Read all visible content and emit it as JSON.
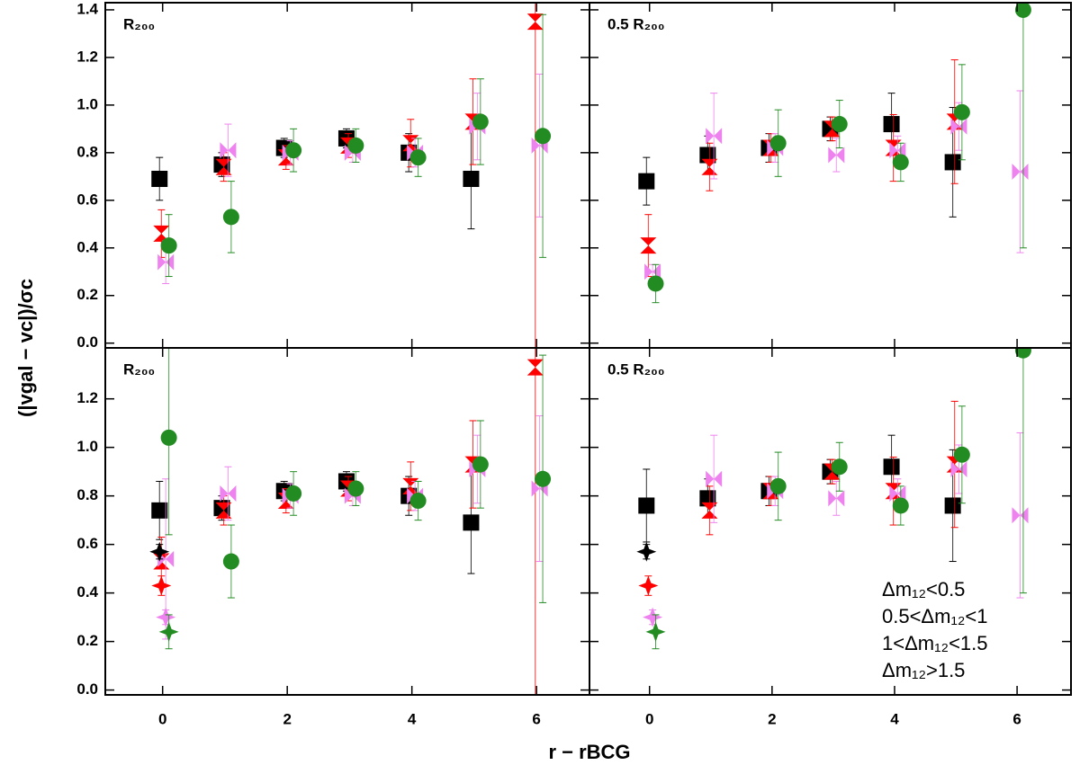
{
  "xlabel": "r − rBCG",
  "ylabel": "(|vgal − vc|)/σc",
  "chart_data": [
    {
      "type": "scatter",
      "label": "R₂₀₀",
      "xlim": [
        -0.92,
        6.85
      ],
      "ylim": [
        -0.02,
        1.43
      ],
      "xticks": [
        0,
        2,
        4,
        6
      ],
      "yticks": [
        {
          "value": 0,
          "label": "0.0"
        },
        {
          "value": 0.2,
          "label": "0.2"
        },
        {
          "value": 0.4,
          "label": "0.4"
        },
        {
          "value": 0.6,
          "label": "0.6"
        },
        {
          "value": 0.8,
          "label": "0.8"
        },
        {
          "value": 1.0,
          "label": "1.0"
        },
        {
          "value": 1.2,
          "label": "1.2"
        },
        {
          "value": 1.4,
          "label": "1.4"
        }
      ],
      "series": [
        {
          "color": "#000000",
          "marker": "square",
          "x": [
            -0.05,
            0.95,
            1.95,
            2.95,
            3.95,
            4.95
          ],
          "values": [
            0.69,
            0.75,
            0.82,
            0.86,
            0.8,
            0.69
          ],
          "errors": [
            0.09,
            0.05,
            0.04,
            0.04,
            0.08,
            0.21
          ]
        },
        {
          "color": "#ff0000",
          "marker": "hourglass",
          "x": [
            -0.02,
            0.98,
            1.98,
            2.98,
            3.98,
            4.98,
            5.98
          ],
          "values": [
            0.46,
            0.74,
            0.78,
            0.83,
            0.84,
            0.93,
            1.35
          ],
          "errors": [
            0.1,
            0.06,
            0.05,
            0.05,
            0.1,
            0.18,
            1.4
          ]
        },
        {
          "color": "#ee82ee",
          "marker": "bowtie",
          "x": [
            0.05,
            1.05,
            2.05,
            3.05,
            4.05,
            5.05,
            6.05
          ],
          "values": [
            0.34,
            0.81,
            0.8,
            0.8,
            0.8,
            0.91,
            0.83
          ],
          "errors": [
            0.09,
            0.11,
            0.05,
            0.04,
            0.06,
            0.14,
            0.3
          ]
        },
        {
          "color": "#228b22",
          "marker": "circle",
          "x": [
            0.1,
            1.1,
            2.1,
            3.1,
            4.1,
            5.1,
            6.1
          ],
          "values": [
            0.41,
            0.53,
            0.81,
            0.83,
            0.78,
            0.93,
            0.87
          ],
          "errors": [
            0.13,
            0.15,
            0.09,
            0.07,
            0.08,
            0.18,
            0.51
          ]
        }
      ]
    },
    {
      "type": "scatter",
      "label": "0.5 R₂₀₀",
      "xlim": [
        -0.98,
        6.88
      ],
      "ylim": [
        -0.02,
        1.43
      ],
      "xticks": [
        0,
        2,
        4,
        6
      ],
      "yticks": [
        0,
        0.2,
        0.4,
        0.6,
        0.8,
        1.0,
        1.2,
        1.4
      ],
      "series": [
        {
          "color": "#000000",
          "marker": "square",
          "x": [
            -0.05,
            0.95,
            1.95,
            2.95,
            3.95,
            4.95
          ],
          "values": [
            0.68,
            0.79,
            0.82,
            0.9,
            0.92,
            0.76
          ],
          "errors": [
            0.1,
            0.08,
            0.06,
            0.05,
            0.13,
            0.23
          ]
        },
        {
          "color": "#ff0000",
          "marker": "hourglass",
          "x": [
            -0.02,
            0.98,
            1.98,
            2.98,
            3.98,
            4.98
          ],
          "values": [
            0.41,
            0.74,
            0.82,
            0.9,
            0.82,
            0.93
          ],
          "errors": [
            0.13,
            0.1,
            0.06,
            0.05,
            0.14,
            0.26
          ]
        },
        {
          "color": "#ee82ee",
          "marker": "bowtie",
          "x": [
            0.05,
            1.05,
            2.05,
            3.05,
            4.05,
            5.05,
            6.05
          ],
          "values": [
            0.3,
            0.87,
            0.82,
            0.79,
            0.81,
            0.91,
            0.72
          ],
          "errors": [
            0.03,
            0.18,
            0.06,
            0.07,
            0.06,
            0.1,
            0.34
          ]
        },
        {
          "color": "#228b22",
          "marker": "circle",
          "x": [
            0.1,
            2.1,
            3.1,
            4.1,
            5.1,
            6.1
          ],
          "values": [
            0.25,
            0.84,
            0.92,
            0.76,
            0.97,
            1.4
          ],
          "errors": [
            0.08,
            0.14,
            0.1,
            0.08,
            0.2,
            1.0
          ]
        }
      ]
    },
    {
      "type": "scatter",
      "label": "R₂₀₀",
      "xlim": [
        -0.92,
        6.85
      ],
      "ylim": [
        -0.02,
        1.41
      ],
      "xticks": [
        0,
        2,
        4,
        6
      ],
      "yticks": [
        {
          "value": 0,
          "label": "0.0"
        },
        {
          "value": 0.2,
          "label": "0.2"
        },
        {
          "value": 0.4,
          "label": "0.4"
        },
        {
          "value": 0.6,
          "label": "0.6"
        },
        {
          "value": 0.8,
          "label": "0.8"
        },
        {
          "value": 1.0,
          "label": "1.0"
        },
        {
          "value": 1.2,
          "label": "1.2"
        }
      ],
      "series": [
        {
          "color": "#000000",
          "marker": "square",
          "x": [
            -0.05,
            0.95,
            1.95,
            2.95,
            3.95,
            4.95
          ],
          "values": [
            0.74,
            0.75,
            0.82,
            0.86,
            0.8,
            0.69
          ],
          "errors": [
            0.12,
            0.05,
            0.04,
            0.04,
            0.08,
            0.21
          ]
        },
        {
          "color": "#ff0000",
          "marker": "hourglass",
          "x": [
            -0.02,
            0.98,
            1.98,
            2.98,
            3.98,
            4.98,
            5.98
          ],
          "values": [
            0.53,
            0.74,
            0.78,
            0.83,
            0.84,
            0.93,
            1.33
          ],
          "errors": [
            0.1,
            0.06,
            0.05,
            0.05,
            0.1,
            0.18,
            1.4
          ]
        },
        {
          "color": "#ee82ee",
          "marker": "bowtie",
          "x": [
            0.05,
            1.05,
            2.05,
            3.05,
            4.05,
            5.05,
            6.05
          ],
          "values": [
            0.54,
            0.81,
            0.8,
            0.8,
            0.8,
            0.91,
            0.83
          ],
          "errors": [
            0.33,
            0.11,
            0.05,
            0.04,
            0.06,
            0.14,
            0.3
          ]
        },
        {
          "color": "#228b22",
          "marker": "circle",
          "x": [
            0.1,
            1.1,
            2.1,
            3.1,
            4.1,
            5.1,
            6.1
          ],
          "values": [
            1.04,
            0.53,
            0.81,
            0.83,
            0.78,
            0.93,
            0.87
          ],
          "errors": [
            0.4,
            0.15,
            0.09,
            0.07,
            0.08,
            0.18,
            0.51
          ]
        },
        {
          "color": "#000000",
          "marker": "star",
          "x": [
            -0.05
          ],
          "values": [
            0.57
          ],
          "errors": [
            0.03
          ]
        },
        {
          "color": "#ff0000",
          "marker": "star",
          "x": [
            -0.02
          ],
          "values": [
            0.43
          ],
          "errors": [
            0.04
          ]
        },
        {
          "color": "#ee82ee",
          "marker": "star",
          "x": [
            0.05
          ],
          "values": [
            0.3
          ],
          "errors": [
            0.03
          ]
        },
        {
          "color": "#228b22",
          "marker": "star",
          "x": [
            0.1
          ],
          "values": [
            0.24
          ],
          "errors": [
            0.07
          ]
        }
      ]
    },
    {
      "type": "scatter",
      "label": "0.5 R₂₀₀",
      "xlim": [
        -0.98,
        6.88
      ],
      "ylim": [
        -0.02,
        1.41
      ],
      "xticks": [
        0,
        2,
        4,
        6
      ],
      "yticks": [
        0,
        0.2,
        0.4,
        0.6,
        0.8,
        1.0,
        1.2
      ],
      "legend": "lower right",
      "series": [
        {
          "name": "Δm₁₂<0.5",
          "color": "#000000",
          "marker": "square",
          "x": [
            -0.05,
            0.95,
            1.95,
            2.95,
            3.95,
            4.95
          ],
          "values": [
            0.76,
            0.79,
            0.82,
            0.9,
            0.92,
            0.76
          ],
          "errors": [
            0.15,
            0.08,
            0.06,
            0.05,
            0.13,
            0.23
          ]
        },
        {
          "name": "0.5<Δm₁₂<1",
          "color": "#ff0000",
          "marker": "hourglass",
          "x": [
            0.98,
            1.98,
            2.98,
            3.98,
            4.98
          ],
          "values": [
            0.74,
            0.82,
            0.9,
            0.82,
            0.93
          ],
          "errors": [
            0.1,
            0.06,
            0.05,
            0.14,
            0.26
          ]
        },
        {
          "name": "1<Δm₁₂<1.5",
          "color": "#ee82ee",
          "marker": "bowtie",
          "x": [
            1.05,
            2.05,
            3.05,
            4.05,
            5.05,
            6.05
          ],
          "values": [
            0.87,
            0.82,
            0.79,
            0.81,
            0.91,
            0.72
          ],
          "errors": [
            0.18,
            0.06,
            0.07,
            0.06,
            0.1,
            0.34
          ]
        },
        {
          "name": "Δm₁₂>1.5",
          "color": "#228b22",
          "marker": "circle",
          "x": [
            2.1,
            3.1,
            4.1,
            5.1,
            6.1
          ],
          "values": [
            0.84,
            0.92,
            0.76,
            0.97,
            1.4
          ],
          "errors": [
            0.14,
            0.1,
            0.08,
            0.2,
            1.0
          ]
        },
        {
          "color": "#000000",
          "marker": "star",
          "x": [
            -0.05
          ],
          "values": [
            0.57
          ],
          "errors": [
            0.03
          ]
        },
        {
          "color": "#ff0000",
          "marker": "star",
          "x": [
            -0.02
          ],
          "values": [
            0.43
          ],
          "errors": [
            0.04
          ]
        },
        {
          "color": "#ee82ee",
          "marker": "star",
          "x": [
            0.05
          ],
          "values": [
            0.3
          ],
          "errors": [
            0.03
          ]
        },
        {
          "color": "#228b22",
          "marker": "star",
          "x": [
            0.1
          ],
          "values": [
            0.24
          ],
          "errors": [
            0.07
          ]
        }
      ]
    }
  ]
}
